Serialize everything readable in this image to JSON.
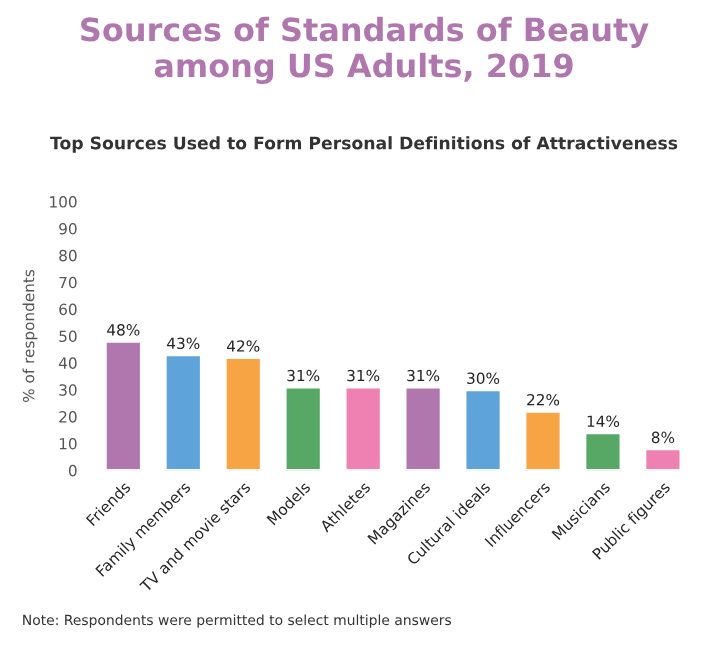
{
  "chart_data": {
    "type": "bar",
    "title": "Sources of Standards of Beauty\namong US Adults, 2019",
    "subtitle": "Top Sources Used to Form Personal Definitions of Attractiveness",
    "ylabel": "% of respondents",
    "categories": [
      "Friends",
      "Family members",
      "TV and movie stars",
      "Models",
      "Athletes",
      "Magazines",
      "Cultural ideals",
      "Influencers",
      "Musicians",
      "Public figures"
    ],
    "values": [
      48,
      43,
      42,
      31,
      31,
      31,
      30,
      22,
      14,
      8
    ],
    "value_labels": [
      "48%",
      "43%",
      "42%",
      "31%",
      "31%",
      "31%",
      "30%",
      "22%",
      "14%",
      "8%"
    ],
    "colors": [
      "#b077ae",
      "#5ea4da",
      "#f7a445",
      "#58a865",
      "#ee80b2",
      "#b077ae",
      "#5ea4da",
      "#f7a445",
      "#58a865",
      "#ee80b2"
    ],
    "ylim": [
      0,
      100
    ],
    "yticks": [
      0,
      10,
      20,
      30,
      40,
      50,
      60,
      70,
      80,
      90,
      100
    ],
    "grid": false,
    "legend": false,
    "annotations": [
      "Note: Respondents were permitted to select multiple answers"
    ]
  }
}
